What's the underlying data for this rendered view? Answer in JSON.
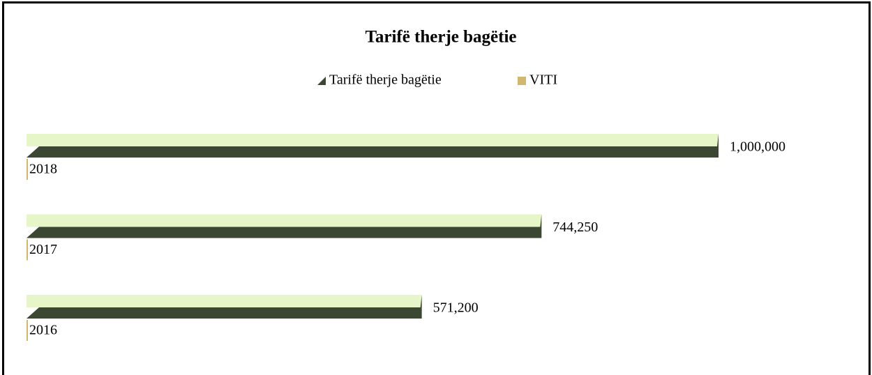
{
  "chart_data": {
    "type": "bar",
    "orientation": "horizontal",
    "title": "Tarifë therje bagëtie",
    "categories": [
      null,
      null,
      null
    ],
    "series": [
      {
        "name": "Tarifë therje bagëtie",
        "color": "#3b4733",
        "values": [
          571200,
          744250,
          1000000
        ],
        "value_labels": [
          "571,200",
          "744,250",
          "1,000,000"
        ]
      },
      {
        "name": "VITI",
        "color": "#d3b76e",
        "values": [
          2016,
          2017,
          2018
        ]
      }
    ],
    "legend": "top"
  }
}
